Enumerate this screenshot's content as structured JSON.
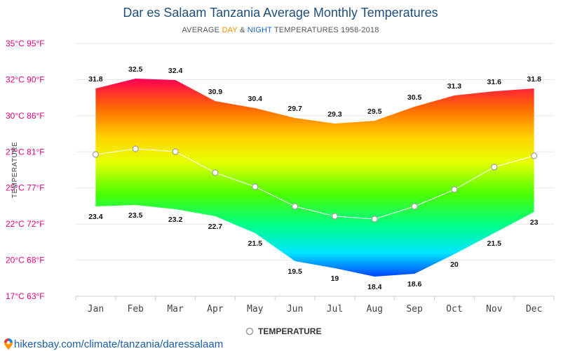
{
  "chart_data": {
    "type": "area",
    "title": "Dar es Salaam Tanzania Average Monthly Temperatures",
    "subtitle": {
      "prefix": "AVERAGE ",
      "day": "DAY",
      "amp": " & ",
      "night": "NIGHT",
      "suffix": " TEMPERATURES 1958-2018"
    },
    "ylabel": "TEMPERATURE",
    "categories": [
      "Jan",
      "Feb",
      "Mar",
      "Apr",
      "May",
      "Jun",
      "Jul",
      "Aug",
      "Sep",
      "Oct",
      "Nov",
      "Dec"
    ],
    "series": [
      {
        "name": "Day",
        "values": [
          31.8,
          32.5,
          32.4,
          30.9,
          30.4,
          29.7,
          29.3,
          29.5,
          30.5,
          31.3,
          31.6,
          31.8
        ]
      },
      {
        "name": "Night",
        "values": [
          23.4,
          23.5,
          23.2,
          22.7,
          21.5,
          19.5,
          19,
          18.4,
          18.6,
          20,
          21.5,
          23
        ]
      },
      {
        "name": "TEMPERATURE",
        "values": [
          27.1,
          27.5,
          27.3,
          25.8,
          24.8,
          23.4,
          22.7,
          22.5,
          23.4,
          24.6,
          26.2,
          27
        ]
      }
    ],
    "ylim": [
      17,
      35
    ],
    "yticks": [
      {
        "value": 17,
        "label": "17°C 63°F"
      },
      {
        "value": 20,
        "label": "20°C 68°F"
      },
      {
        "value": 22,
        "label": "22°C 72°F"
      },
      {
        "value": 25,
        "label": "25°C 77°F"
      },
      {
        "value": 27,
        "label": "27°C 81°F"
      },
      {
        "value": 30,
        "label": "30°C 86°F"
      },
      {
        "value": 32,
        "label": "32°C 90°F"
      },
      {
        "value": 35,
        "label": "35°C 95°F"
      }
    ],
    "legend": "bottom-center",
    "grid": true
  },
  "legend_label": "TEMPERATURE",
  "source": "hikersbay.com/climate/tanzania/daressalaam",
  "colors": {
    "day_word": "#ff8c00",
    "night_word": "#1565c0",
    "grid": "#e6e6e6",
    "mean_line": "#ffffff",
    "marker_stroke": "#9e9e9e",
    "gradient": [
      "#ff0055",
      "#ff6a00",
      "#ffd400",
      "#e8ff00",
      "#4cff00",
      "#00ff88",
      "#00e5ff",
      "#0044ff"
    ]
  }
}
